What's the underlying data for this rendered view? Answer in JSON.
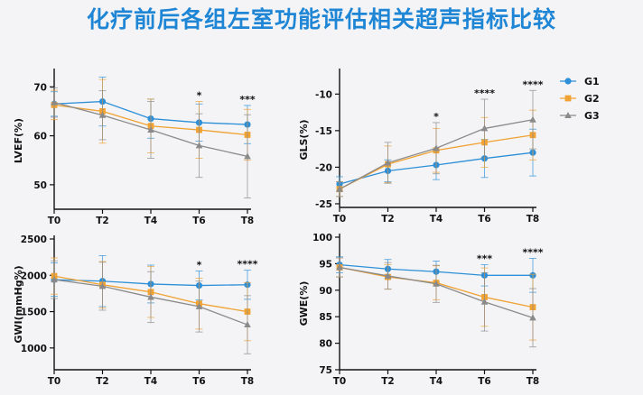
{
  "title": "化疗前后各组左室功能评估相关超声指标比较",
  "colors": {
    "G1": "#2d8fd8",
    "G2": "#f0a232",
    "G3": "#8a8a8a",
    "axis": "#111111"
  },
  "legend": {
    "position": "right",
    "entries": [
      "G1",
      "G2",
      "G3"
    ]
  },
  "chart_data": [
    {
      "type": "line",
      "ylabel": "LVEF(%)",
      "categories": [
        "T0",
        "T2",
        "T4",
        "T6",
        "T8"
      ],
      "ylim": [
        45,
        73
      ],
      "yticks": [
        50,
        60,
        70
      ],
      "significance": [
        "",
        "",
        "",
        "*",
        "***"
      ],
      "series": [
        {
          "name": "G1",
          "values": [
            66.5,
            67.0,
            63.5,
            62.7,
            62.3
          ],
          "err": [
            2.5,
            5.0,
            4.0,
            3.8,
            3.9
          ]
        },
        {
          "name": "G2",
          "values": [
            66.3,
            65.0,
            62.0,
            61.2,
            60.2
          ],
          "err": [
            3.0,
            6.5,
            5.5,
            5.8,
            5.2
          ]
        },
        {
          "name": "G3",
          "values": [
            66.8,
            64.2,
            61.2,
            58.0,
            55.8
          ],
          "err": [
            3.0,
            5.0,
            5.8,
            6.5,
            8.5
          ]
        }
      ]
    },
    {
      "type": "line",
      "ylabel": "GLS(%)",
      "categories": [
        "T0",
        "T2",
        "T4",
        "T6",
        "T8"
      ],
      "ylim": [
        -25.5,
        -7
      ],
      "yticks": [
        -25,
        -20,
        -15,
        -10
      ],
      "significance": [
        "",
        "",
        "*",
        "****",
        "****"
      ],
      "series": [
        {
          "name": "G1",
          "values": [
            -22.3,
            -20.5,
            -19.7,
            -18.8,
            -18.0
          ],
          "err": [
            1.0,
            1.5,
            2.0,
            2.6,
            3.2
          ]
        },
        {
          "name": "G2",
          "values": [
            -23.0,
            -19.6,
            -17.7,
            -16.6,
            -15.6
          ],
          "err": [
            1.0,
            2.5,
            3.0,
            3.4,
            3.4
          ]
        },
        {
          "name": "G3",
          "values": [
            -23.0,
            -19.4,
            -17.4,
            -14.7,
            -13.5
          ],
          "err": [
            1.0,
            2.8,
            3.5,
            4.0,
            4.0
          ]
        }
      ]
    },
    {
      "type": "line",
      "ylabel": "GWI(mmHg%)",
      "categories": [
        "T0",
        "T2",
        "T4",
        "T6",
        "T8"
      ],
      "ylim": [
        700,
        2500
      ],
      "yticks": [
        1000,
        1500,
        2000,
        2500
      ],
      "significance": [
        "",
        "",
        "",
        "*",
        "****"
      ],
      "series": [
        {
          "name": "G1",
          "values": [
            1940,
            1920,
            1880,
            1860,
            1870
          ],
          "err": [
            230,
            350,
            260,
            200,
            200
          ]
        },
        {
          "name": "G2",
          "values": [
            1990,
            1870,
            1770,
            1610,
            1500
          ],
          "err": [
            250,
            320,
            350,
            350,
            400
          ]
        },
        {
          "name": "G3",
          "values": [
            1940,
            1850,
            1700,
            1570,
            1320
          ],
          "err": [
            260,
            330,
            350,
            350,
            400
          ]
        }
      ]
    },
    {
      "type": "line",
      "ylabel": "GWE(%)",
      "categories": [
        "T0",
        "T2",
        "T4",
        "T6",
        "T8"
      ],
      "ylim": [
        75,
        100
      ],
      "yticks": [
        75,
        80,
        85,
        90,
        95,
        100
      ],
      "significance": [
        "",
        "",
        "",
        "***",
        "****"
      ],
      "series": [
        {
          "name": "G1",
          "values": [
            94.8,
            94.0,
            93.5,
            92.8,
            92.8
          ],
          "err": [
            1.5,
            1.8,
            2.0,
            2.0,
            3.2
          ]
        },
        {
          "name": "G2",
          "values": [
            94.3,
            92.5,
            91.4,
            88.7,
            86.8
          ],
          "err": [
            1.8,
            2.3,
            3.2,
            5.5,
            6.2
          ]
        },
        {
          "name": "G3",
          "values": [
            94.3,
            92.7,
            91.2,
            87.8,
            84.8
          ],
          "err": [
            1.8,
            2.5,
            3.5,
            5.5,
            5.5
          ]
        }
      ]
    }
  ]
}
